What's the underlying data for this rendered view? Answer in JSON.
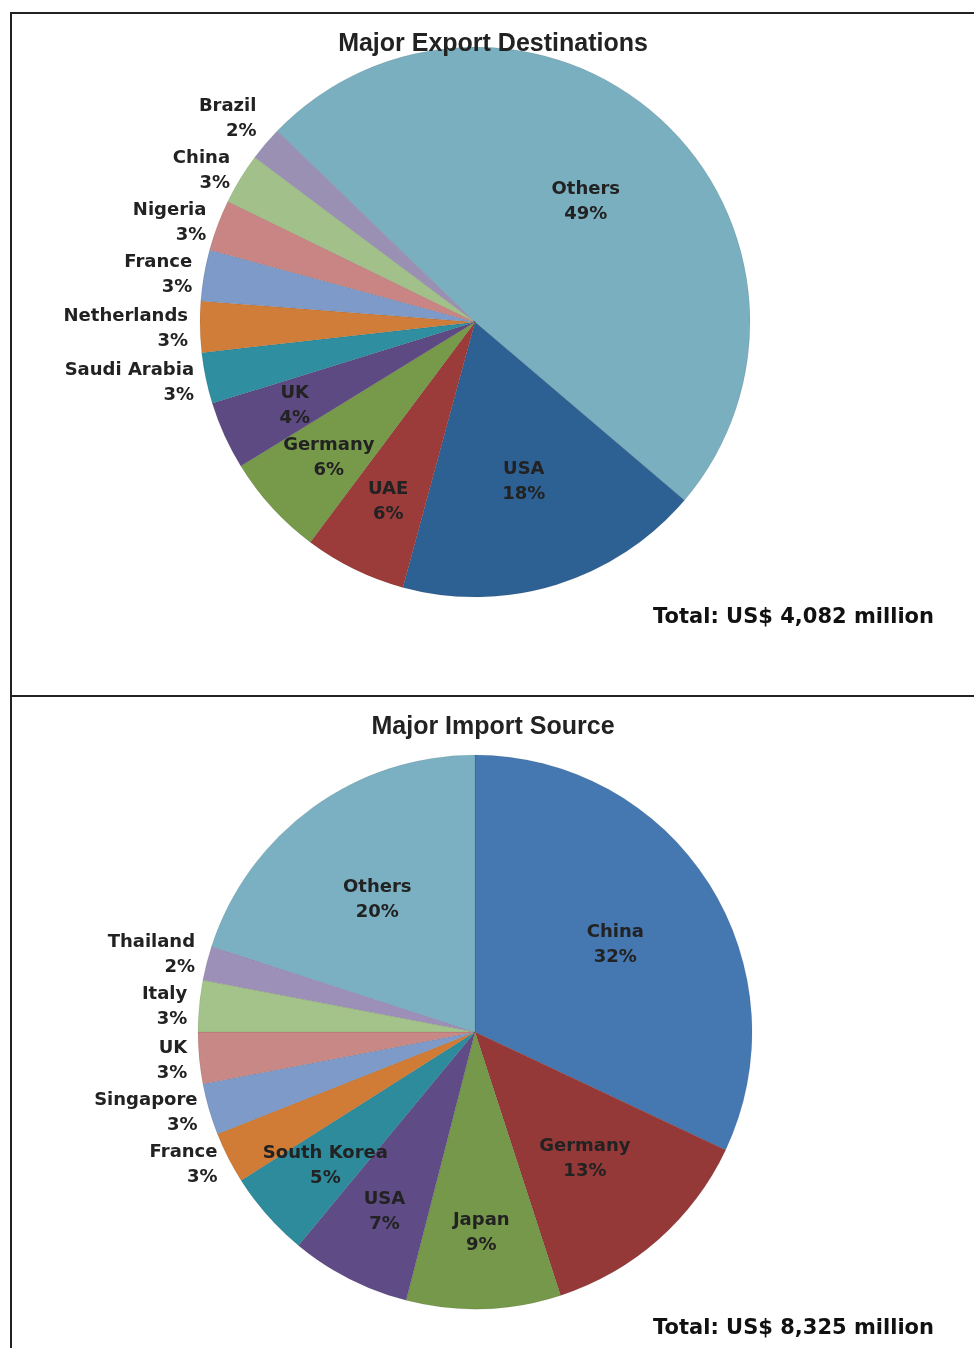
{
  "chart_data": [
    {
      "type": "pie",
      "title": "Major Export Destinations",
      "categories": [
        "Others",
        "USA",
        "UAE",
        "Germany",
        "UK",
        "Saudi Arabia",
        "Netherlands",
        "France",
        "Nigeria",
        "China",
        "Brazil"
      ],
      "values": [
        49,
        18,
        6,
        6,
        4,
        3,
        3,
        3,
        3,
        3,
        2
      ],
      "value_labels": [
        "49%",
        "18%",
        "6%",
        "6%",
        "4%",
        "3%",
        "3%",
        "3%",
        "3%",
        "3%",
        "2%"
      ],
      "colors": [
        "#7aafc0",
        "#2e6193",
        "#9b3b3a",
        "#77994a",
        "#5e4a82",
        "#2f8fa0",
        "#d07d3a",
        "#7e9ac8",
        "#c98583",
        "#a2c08a",
        "#9a90b4"
      ],
      "annotations": [
        "Total: US$ 4,082 million"
      ],
      "legend": false
    },
    {
      "type": "pie",
      "title": "Major Import Source",
      "categories": [
        "China",
        "Germany",
        "Japan",
        "USA",
        "South Korea",
        "France",
        "Singapore",
        "UK",
        "Italy",
        "Thailand",
        "Others"
      ],
      "values": [
        32,
        13,
        9,
        7,
        5,
        3,
        3,
        3,
        3,
        2,
        20
      ],
      "value_labels": [
        "32%",
        "13%",
        "9%",
        "7%",
        "5%",
        "3%",
        "3%",
        "3%",
        "3%",
        "2%",
        "20%"
      ],
      "colors": [
        "#4577b0",
        "#953838",
        "#76984a",
        "#5f4b85",
        "#2d8b9c",
        "#d07c36",
        "#7e9ac8",
        "#c88886",
        "#a4c38a",
        "#9c90b8",
        "#7ab0c2"
      ],
      "annotations": [
        "Total: US$ 8,325 million"
      ],
      "legend": false
    }
  ]
}
